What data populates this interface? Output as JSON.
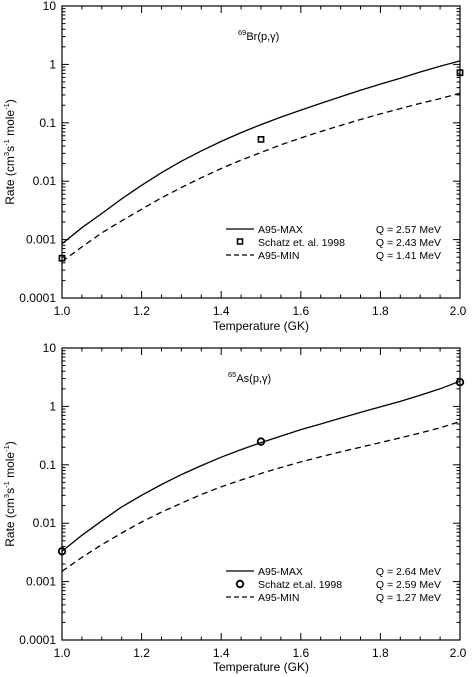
{
  "chart_data": [
    {
      "type": "line",
      "reaction": {
        "mass": "69",
        "label": "Br(p,γ)"
      },
      "xlabel": "Temperature (GK)",
      "ylabel": {
        "pre": "Rate (cm",
        "e1": "3",
        "mid1": "s",
        "e2": "-1",
        "mid2": " mole",
        "e3": "-1",
        "post": ")"
      },
      "xlim": [
        1.0,
        2.0
      ],
      "ylim": [
        0.0001,
        10
      ],
      "yscale": "log",
      "xticks": [
        "1.0",
        "1.2",
        "1.4",
        "1.6",
        "1.8",
        "2.0"
      ],
      "yticks": [
        "10",
        "1",
        "0.1",
        "0.01",
        "0.001",
        "0.0001"
      ],
      "legend_position": "lower-right",
      "series": [
        {
          "name": "A95-MAX",
          "q": "Q = 2.57 MeV",
          "style": "solid",
          "x": [
            1.0,
            1.05,
            1.1,
            1.15,
            1.2,
            1.25,
            1.3,
            1.35,
            1.4,
            1.45,
            1.5,
            1.55,
            1.6,
            1.65,
            1.7,
            1.75,
            1.8,
            1.85,
            1.9,
            1.95,
            2.0
          ],
          "y": [
            0.00085,
            0.0016,
            0.0028,
            0.005,
            0.0085,
            0.014,
            0.022,
            0.033,
            0.048,
            0.068,
            0.093,
            0.125,
            0.165,
            0.215,
            0.28,
            0.36,
            0.46,
            0.58,
            0.74,
            0.93,
            1.15
          ]
        },
        {
          "name": "Schatz et. al. 1998",
          "q": "Q = 2.43 MeV",
          "style": "square-marker",
          "x": [
            1.0,
            1.5,
            2.0
          ],
          "y": [
            0.00048,
            0.052,
            0.72
          ]
        },
        {
          "name": "A95-MIN",
          "q": "Q = 1.41 MeV",
          "style": "dashed",
          "x": [
            1.0,
            1.05,
            1.1,
            1.15,
            1.2,
            1.25,
            1.3,
            1.35,
            1.4,
            1.45,
            1.5,
            1.55,
            1.6,
            1.65,
            1.7,
            1.75,
            1.8,
            1.85,
            1.9,
            1.95,
            2.0
          ],
          "y": [
            0.00042,
            0.00075,
            0.0013,
            0.0021,
            0.0033,
            0.0052,
            0.0078,
            0.0115,
            0.0165,
            0.023,
            0.031,
            0.042,
            0.055,
            0.071,
            0.09,
            0.114,
            0.142,
            0.175,
            0.215,
            0.26,
            0.32
          ]
        }
      ]
    },
    {
      "type": "line",
      "reaction": {
        "mass": "65",
        "label": "As(p,γ)"
      },
      "xlabel": "Temperature (GK)",
      "ylabel": {
        "pre": "Rate (cm",
        "e1": "3",
        "mid1": "s",
        "e2": "-1",
        "mid2": " mole",
        "e3": "-1",
        "post": ")"
      },
      "xlim": [
        1.0,
        2.0
      ],
      "ylim": [
        0.0001,
        10
      ],
      "yscale": "log",
      "xticks": [
        "1.0",
        "1.2",
        "1.4",
        "1.6",
        "1.8",
        "2.0"
      ],
      "yticks": [
        "10",
        "1",
        "0.1",
        "0.01",
        "0.001",
        "0.0001"
      ],
      "legend_position": "lower-right",
      "series": [
        {
          "name": "A95-MAX",
          "q": "Q = 2.64 MeV",
          "style": "solid",
          "x": [
            1.0,
            1.05,
            1.1,
            1.15,
            1.2,
            1.25,
            1.3,
            1.35,
            1.4,
            1.45,
            1.5,
            1.55,
            1.6,
            1.65,
            1.7,
            1.75,
            1.8,
            1.85,
            1.9,
            1.95,
            2.0
          ],
          "y": [
            0.0033,
            0.0062,
            0.011,
            0.019,
            0.03,
            0.046,
            0.068,
            0.097,
            0.135,
            0.182,
            0.24,
            0.31,
            0.4,
            0.5,
            0.63,
            0.79,
            0.98,
            1.22,
            1.55,
            2.0,
            2.7
          ]
        },
        {
          "name": "Schatz et.al. 1998",
          "q": "Q = 2.59 MeV",
          "style": "circle-marker",
          "x": [
            1.0,
            1.5,
            2.0
          ],
          "y": [
            0.0033,
            0.25,
            2.6
          ]
        },
        {
          "name": "A95-MIN",
          "q": "Q = 1.27 MeV",
          "style": "dashed",
          "x": [
            1.0,
            1.05,
            1.1,
            1.15,
            1.2,
            1.25,
            1.3,
            1.35,
            1.4,
            1.45,
            1.5,
            1.55,
            1.6,
            1.65,
            1.7,
            1.75,
            1.8,
            1.85,
            1.9,
            1.95,
            2.0
          ],
          "y": [
            0.0015,
            0.0026,
            0.0043,
            0.0068,
            0.0105,
            0.0155,
            0.022,
            0.031,
            0.042,
            0.055,
            0.071,
            0.09,
            0.112,
            0.137,
            0.166,
            0.2,
            0.24,
            0.29,
            0.35,
            0.43,
            0.55
          ]
        }
      ]
    }
  ]
}
